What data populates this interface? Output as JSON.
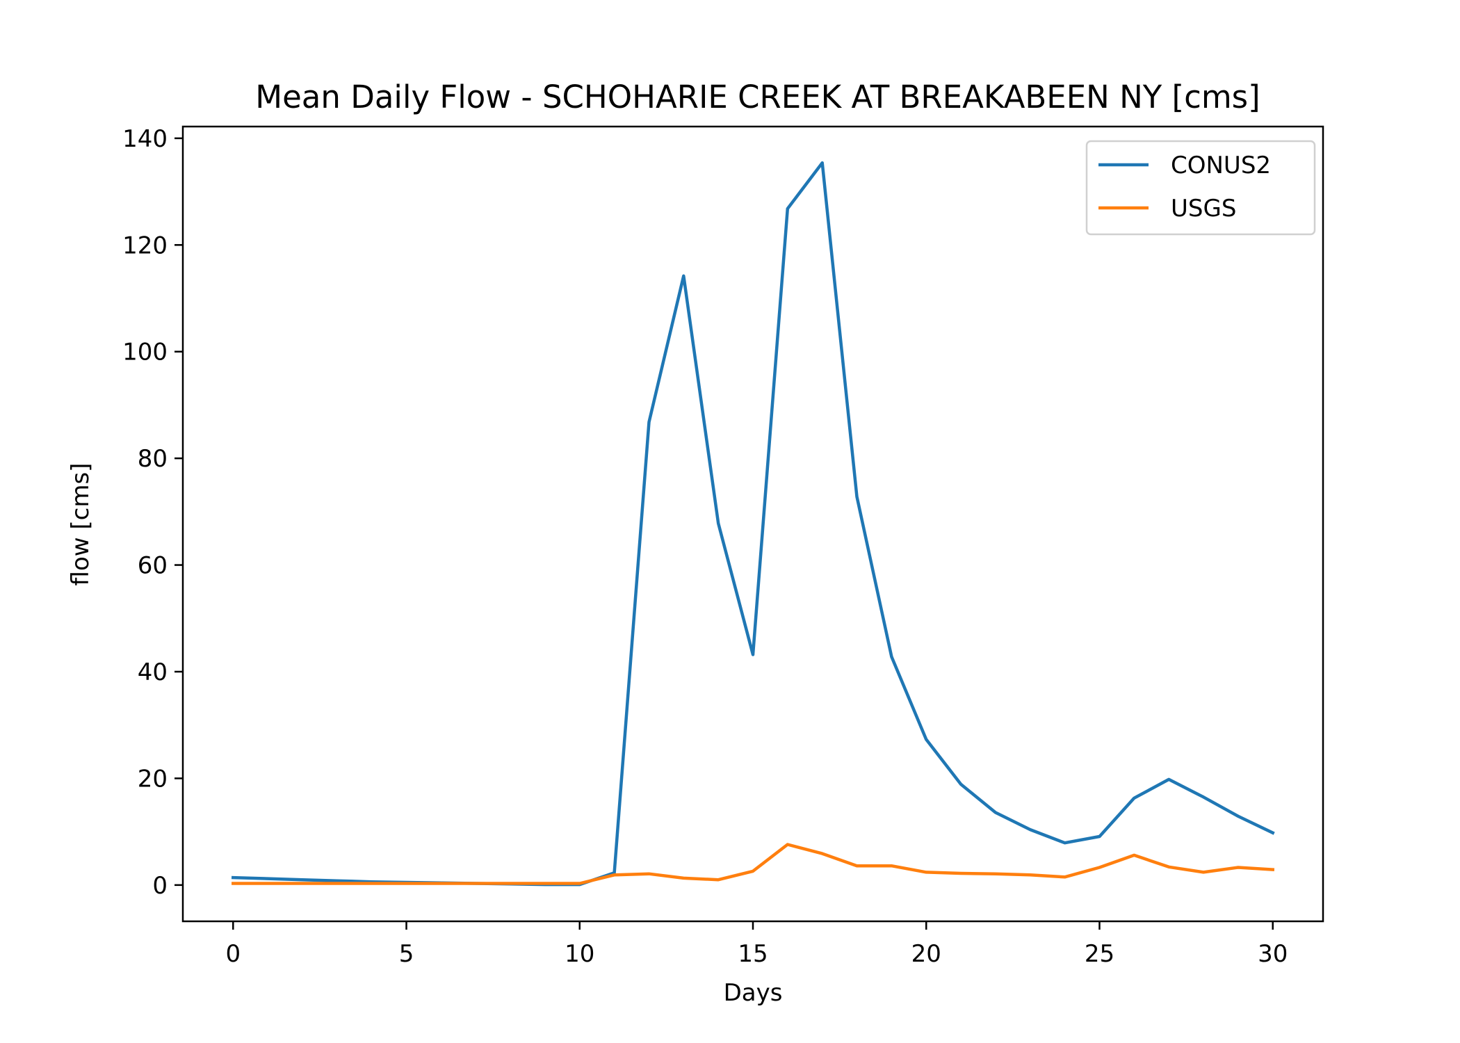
{
  "chart_data": {
    "type": "line",
    "title": "Mean Daily Flow - SCHOHARIE CREEK AT BREAKABEEN NY [cms]",
    "xlabel": "Days",
    "ylabel": "flow [cms]",
    "xlim": [
      -1.45,
      31.45
    ],
    "ylim": [
      -6.8,
      142.2
    ],
    "xticks": [
      0,
      5,
      10,
      15,
      20,
      25,
      30
    ],
    "yticks": [
      0,
      20,
      40,
      60,
      80,
      100,
      120,
      140
    ],
    "grid": false,
    "legend_position": "top-right",
    "x": [
      0,
      1,
      2,
      3,
      4,
      5,
      6,
      7,
      8,
      9,
      10,
      11,
      12,
      13,
      14,
      15,
      16,
      17,
      18,
      19,
      20,
      21,
      22,
      23,
      24,
      25,
      26,
      27,
      28,
      29,
      30
    ],
    "series": [
      {
        "name": "CONUS2",
        "color": "#1f77b4",
        "values": [
          1.4,
          1.2,
          1.0,
          0.8,
          0.6,
          0.5,
          0.4,
          0.3,
          0.2,
          0.1,
          0.1,
          2.3,
          86.8,
          114.2,
          67.8,
          43.2,
          126.8,
          135.4,
          72.8,
          42.8,
          27.3,
          18.9,
          13.6,
          10.4,
          7.9,
          9.1,
          16.3,
          19.8,
          16.5,
          12.9,
          9.8
        ]
      },
      {
        "name": "USGS",
        "color": "#ff7f0e",
        "values": [
          0.3,
          0.3,
          0.3,
          0.3,
          0.3,
          0.3,
          0.3,
          0.3,
          0.3,
          0.3,
          0.3,
          1.9,
          2.1,
          1.3,
          1.0,
          2.6,
          7.6,
          5.9,
          3.6,
          3.6,
          2.4,
          2.2,
          2.1,
          1.9,
          1.5,
          3.3,
          5.6,
          3.4,
          2.4,
          3.3,
          2.9
        ]
      }
    ]
  }
}
